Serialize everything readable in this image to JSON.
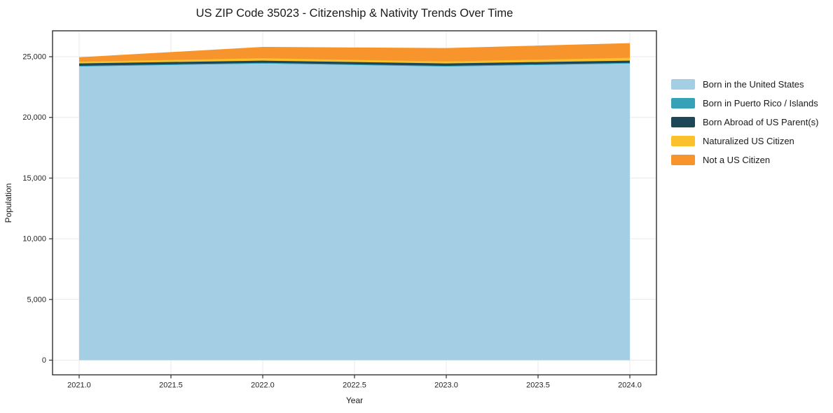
{
  "chart_data": {
    "type": "area",
    "stacked": true,
    "title": "US ZIP Code 35023 - Citizenship & Nativity Trends Over Time",
    "xlabel": "Year",
    "ylabel": "Population",
    "x": [
      2021,
      2022,
      2023,
      2024
    ],
    "series": [
      {
        "name": "Born in the United States",
        "color": "#a3cee4",
        "values": [
          24200,
          24450,
          24200,
          24450
        ]
      },
      {
        "name": "Born in Puerto Rico / Islands",
        "color": "#37a2b7",
        "values": [
          50,
          50,
          50,
          50
        ]
      },
      {
        "name": "Born Abroad of US Parent(s)",
        "color": "#1d4656",
        "values": [
          200,
          180,
          200,
          180
        ]
      },
      {
        "name": "Naturalized US Citizen",
        "color": "#fbc12d",
        "values": [
          150,
          190,
          160,
          230
        ]
      },
      {
        "name": "Not a US Citizen",
        "color": "#f7952c",
        "values": [
          300,
          880,
          1050,
          1150
        ]
      }
    ],
    "x_tick_labels": [
      "2021.0",
      "2021.5",
      "2022.0",
      "2022.5",
      "2023.0",
      "2023.5",
      "2024.0"
    ],
    "y_tick_values": [
      0,
      5000,
      10000,
      15000,
      20000,
      25000
    ],
    "y_tick_labels": [
      "0",
      "5,000",
      "10,000",
      "15,000",
      "20,000",
      "25,000"
    ],
    "xlim": [
      2020.855,
      2024.145
    ],
    "ylim": [
      -1211,
      27135
    ],
    "grid": true,
    "legend_position": "right",
    "grid_color": "#e9e9e9",
    "frame_color": "#2f2f2f"
  }
}
